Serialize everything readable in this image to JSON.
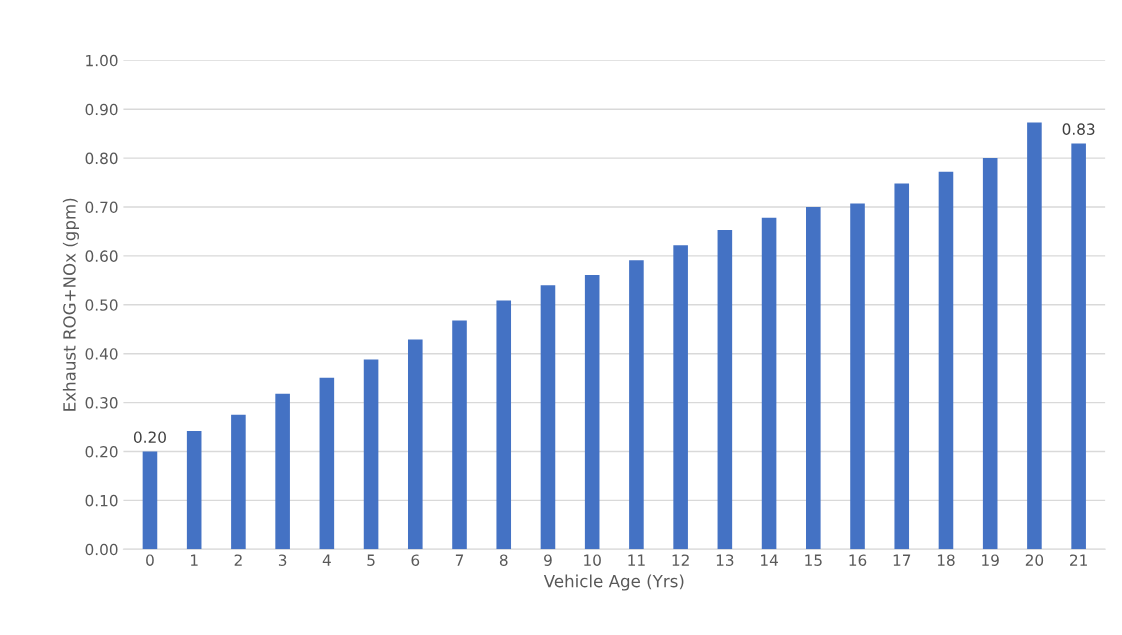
{
  "chart_data": {
    "type": "bar",
    "xlabel": "Vehicle Age (Yrs)",
    "ylabel": "Exhaust ROG+NOx (gpm)",
    "categories": [
      "0",
      "1",
      "2",
      "3",
      "4",
      "5",
      "6",
      "7",
      "8",
      "9",
      "10",
      "11",
      "12",
      "13",
      "14",
      "15",
      "16",
      "17",
      "18",
      "19",
      "20",
      "21"
    ],
    "values": [
      0.2,
      0.242,
      0.275,
      0.318,
      0.351,
      0.388,
      0.429,
      0.468,
      0.509,
      0.54,
      0.561,
      0.591,
      0.622,
      0.653,
      0.678,
      0.7,
      0.707,
      0.748,
      0.772,
      0.8,
      0.873,
      0.83
    ],
    "value_labels": [
      "0.20",
      null,
      null,
      null,
      null,
      null,
      null,
      null,
      null,
      null,
      null,
      null,
      null,
      null,
      null,
      null,
      null,
      null,
      null,
      null,
      null,
      "0.83"
    ],
    "color": "#4472c4",
    "ylim": [
      0,
      1
    ],
    "yticks": [
      {
        "value": 0,
        "label": "0.00"
      },
      {
        "value": 0.1,
        "label": "0.10"
      },
      {
        "value": 0.2,
        "label": "0.20"
      },
      {
        "value": 0.3,
        "label": "0.30"
      },
      {
        "value": 0.4,
        "label": "0.40"
      },
      {
        "value": 0.5,
        "label": "0.50"
      },
      {
        "value": 0.6,
        "label": "0.60"
      },
      {
        "value": 0.7,
        "label": "0.70"
      },
      {
        "value": 0.8,
        "label": "0.80"
      },
      {
        "value": 0.9,
        "label": "0.90"
      },
      {
        "value": 1,
        "label": "1.00"
      }
    ],
    "grid": "y"
  }
}
